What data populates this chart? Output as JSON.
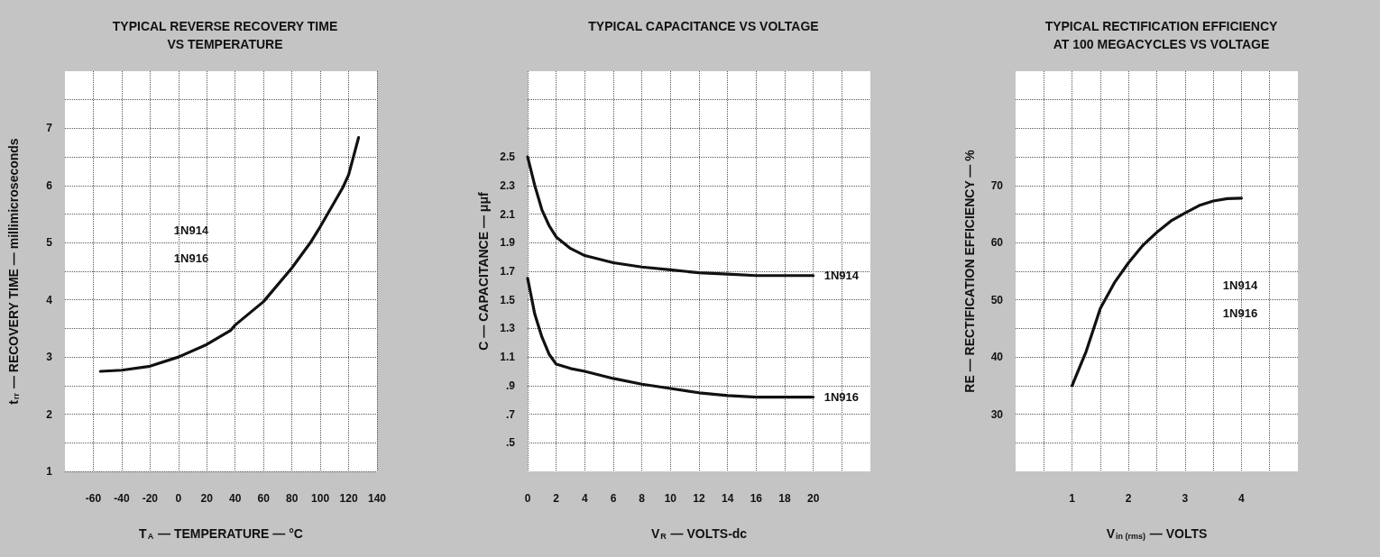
{
  "chart_data": [
    {
      "type": "line",
      "title": "TYPICAL REVERSE RECOVERY TIME\nVS TEMPERATURE",
      "xlabel": "T$_{A}$ — TEMPERATURE — °C",
      "ylabel": "t$_{rr}$ — RECOVERY TIME — millimicroseconds",
      "xlim": [
        -80,
        140
      ],
      "xticks": [
        -60,
        -40,
        -20,
        0,
        20,
        40,
        60,
        80,
        100,
        120,
        140
      ],
      "ylim": [
        1,
        8
      ],
      "yticks": [
        1,
        {
          "value": 1.5,
          "label": null
        },
        2,
        {
          "value": 2.5,
          "label": null
        },
        3,
        {
          "value": 3.5,
          "label": null
        },
        4,
        {
          "value": 4.5,
          "label": null
        },
        5,
        {
          "value": 5.5,
          "label": null
        },
        6,
        {
          "value": 6.5,
          "label": null
        },
        7,
        {
          "value": 7.5,
          "label": null
        }
      ],
      "grid": true,
      "legend": false,
      "marker": "none",
      "line_style": "solid",
      "annotations": [
        "1N914",
        "1N916"
      ],
      "series": [
        {
          "color": "#111111",
          "x": [
            -55,
            -40,
            -20,
            0,
            20,
            37,
            40,
            60,
            80,
            93,
            100,
            116,
            120,
            127
          ],
          "values": [
            2.75,
            2.77,
            2.84,
            3.0,
            3.22,
            3.47,
            3.56,
            3.97,
            4.56,
            5.0,
            5.28,
            5.97,
            6.19,
            6.84
          ]
        }
      ]
    },
    {
      "type": "line",
      "title": "TYPICAL CAPACITANCE VS VOLTAGE",
      "xlabel": "V$_{R}$ — VOLTS-dc",
      "ylabel": "C — CAPACITANCE — μμf",
      "xlim": [
        0,
        24
      ],
      "xticks": [
        0,
        2,
        4,
        6,
        8,
        10,
        12,
        14,
        16,
        18,
        20,
        {
          "value": 22,
          "label": null
        }
      ],
      "ylim": [
        0.3,
        3.1
      ],
      "yticks": [
        {
          "value": 0.5,
          "label": ".5"
        },
        {
          "value": 0.7,
          "label": ".7"
        },
        {
          "value": 0.9,
          "label": ".9"
        },
        1.1,
        1.3,
        1.5,
        1.7,
        1.9,
        2.1,
        2.3,
        2.5,
        {
          "value": 2.7,
          "label": null
        },
        {
          "value": 2.9,
          "label": null
        }
      ],
      "grid": true,
      "legend": false,
      "marker": "none",
      "line_style": "solid",
      "series": [
        {
          "name": "1N914",
          "color": "#111111",
          "x": [
            0,
            0.5,
            1,
            1.5,
            2,
            3,
            4,
            6,
            8,
            10,
            12,
            14,
            16,
            18,
            20
          ],
          "values": [
            2.5,
            2.3,
            2.13,
            2.02,
            1.94,
            1.86,
            1.81,
            1.76,
            1.73,
            1.71,
            1.69,
            1.68,
            1.67,
            1.67,
            1.67
          ]
        },
        {
          "name": "1N916",
          "color": "#111111",
          "x": [
            0,
            0.5,
            1,
            1.5,
            2,
            3,
            4,
            6,
            8,
            10,
            12,
            14,
            16,
            18,
            20
          ],
          "values": [
            1.65,
            1.4,
            1.24,
            1.12,
            1.05,
            1.02,
            1.0,
            0.95,
            0.91,
            0.88,
            0.85,
            0.83,
            0.82,
            0.82,
            0.82
          ]
        }
      ]
    },
    {
      "type": "line",
      "title": "TYPICAL RECTIFICATION EFFICIENCY\nAT 100 MEGACYCLES VS VOLTAGE",
      "xlabel": "V$_{in (rms)}$ — VOLTS",
      "ylabel": "RE — RECTIFICATION EFFICIENCY — %",
      "xlim": [
        0,
        5
      ],
      "xticks": [
        {
          "value": 0.5,
          "label": null
        },
        1,
        {
          "value": 1.5,
          "label": null
        },
        2,
        {
          "value": 2.5,
          "label": null
        },
        3,
        {
          "value": 3.5,
          "label": null
        },
        4,
        {
          "value": 4.5,
          "label": null
        }
      ],
      "ylim": [
        20,
        90
      ],
      "yticks": [
        {
          "value": 25,
          "label": null
        },
        30,
        {
          "value": 35,
          "label": null
        },
        40,
        {
          "value": 45,
          "label": null
        },
        50,
        {
          "value": 55,
          "label": null
        },
        60,
        {
          "value": 65,
          "label": null
        },
        70,
        {
          "value": 75,
          "label": null
        },
        {
          "value": 80,
          "label": null
        },
        {
          "value": 85,
          "label": null
        }
      ],
      "grid": true,
      "legend": false,
      "marker": "none",
      "line_style": "solid",
      "annotations": [
        "1N914",
        "1N916"
      ],
      "series": [
        {
          "color": "#111111",
          "x": [
            1,
            1.25,
            1.5,
            1.75,
            2,
            2.25,
            2.5,
            2.75,
            3,
            3.25,
            3.5,
            3.75,
            4
          ],
          "values": [
            35,
            41,
            48.5,
            53,
            56.5,
            59.5,
            61.8,
            63.8,
            65.2,
            66.5,
            67.3,
            67.7,
            67.8
          ]
        }
      ]
    }
  ]
}
